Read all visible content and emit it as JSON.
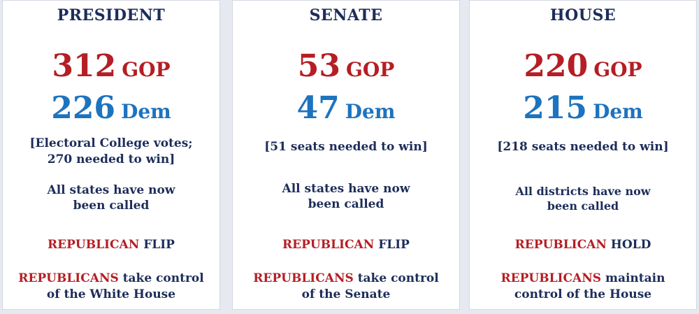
{
  "president": {
    "title": "PRESIDENT",
    "gop_value": "312",
    "gop_label": "GOP",
    "dem_value": "226",
    "dem_label": "Dem",
    "note_line1": "[Electoral College votes;",
    "note_line2": "270 needed to win]",
    "called_line1": "All states have now",
    "called_line2": "been called",
    "status_party": "REPUBLICAN",
    "status_word": "FLIP",
    "control_party": "REPUBLICANS",
    "control_rest": "take control",
    "control_line2": "of the White House"
  },
  "senate": {
    "title": "SENATE",
    "gop_value": "53",
    "gop_label": "GOP",
    "dem_value": "47",
    "dem_label": "Dem",
    "note_line1": "[51 seats needed to win]",
    "called_line1": "All states have now",
    "called_line2": "been called",
    "status_party": "REPUBLICAN",
    "status_word": "FLIP",
    "control_party": "REPUBLICANS",
    "control_rest": "take control",
    "control_line2": "of the Senate"
  },
  "house": {
    "title": "HOUSE",
    "gop_value": "220",
    "gop_label": "GOP",
    "dem_value": "215",
    "dem_label": "Dem",
    "note_line1": "[218 seats needed to win]",
    "called_line1": "All districts have now",
    "called_line2": "been called",
    "status_party": "REPUBLICAN",
    "status_word": "HOLD",
    "control_party": "REPUBLICANS",
    "control_rest": "maintain",
    "control_line2": "control of the House"
  },
  "colors": {
    "gop": "#b51e24",
    "dem": "#1e73be",
    "navy": "#1d2d5a"
  }
}
